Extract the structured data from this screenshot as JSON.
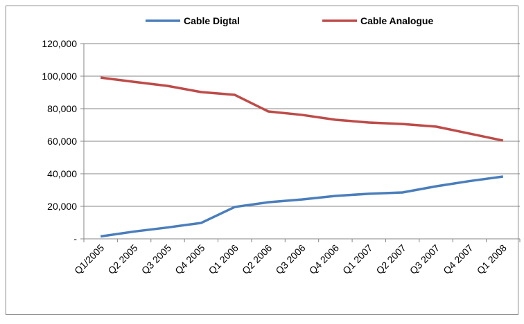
{
  "chart_data": {
    "type": "line",
    "categories": [
      "Q1/2005",
      "Q2 2005",
      "Q3 2005",
      "Q4 2005",
      "Q1 2006",
      "Q2 2006",
      "Q3 2006",
      "Q4 2006",
      "Q1 2007",
      "Q2 2007",
      "Q3 2007",
      "Q4 2007",
      "Q1 2008"
    ],
    "series": [
      {
        "name": "Cable Digtal",
        "color": "#4a7ebb",
        "values": [
          1500,
          4500,
          7000,
          9800,
          19600,
          22500,
          24200,
          26400,
          27700,
          28500,
          32300,
          35500,
          38300
        ]
      },
      {
        "name": "Cable Analogue",
        "color": "#be4b48",
        "values": [
          99100,
          96500,
          94000,
          90200,
          88500,
          78300,
          76200,
          73200,
          71500,
          70600,
          69000,
          64700,
          60400
        ]
      }
    ],
    "ylim": [
      0,
      120000
    ],
    "yticks": [
      {
        "value": 0,
        "label": "-"
      },
      {
        "value": 20000,
        "label": "20,000"
      },
      {
        "value": 40000,
        "label": "40,000"
      },
      {
        "value": 60000,
        "label": "60,000"
      },
      {
        "value": 80000,
        "label": "80,000"
      },
      {
        "value": 100000,
        "label": "100,000"
      },
      {
        "value": 120000,
        "label": "120,000"
      }
    ],
    "grid": true,
    "legend": "top"
  }
}
